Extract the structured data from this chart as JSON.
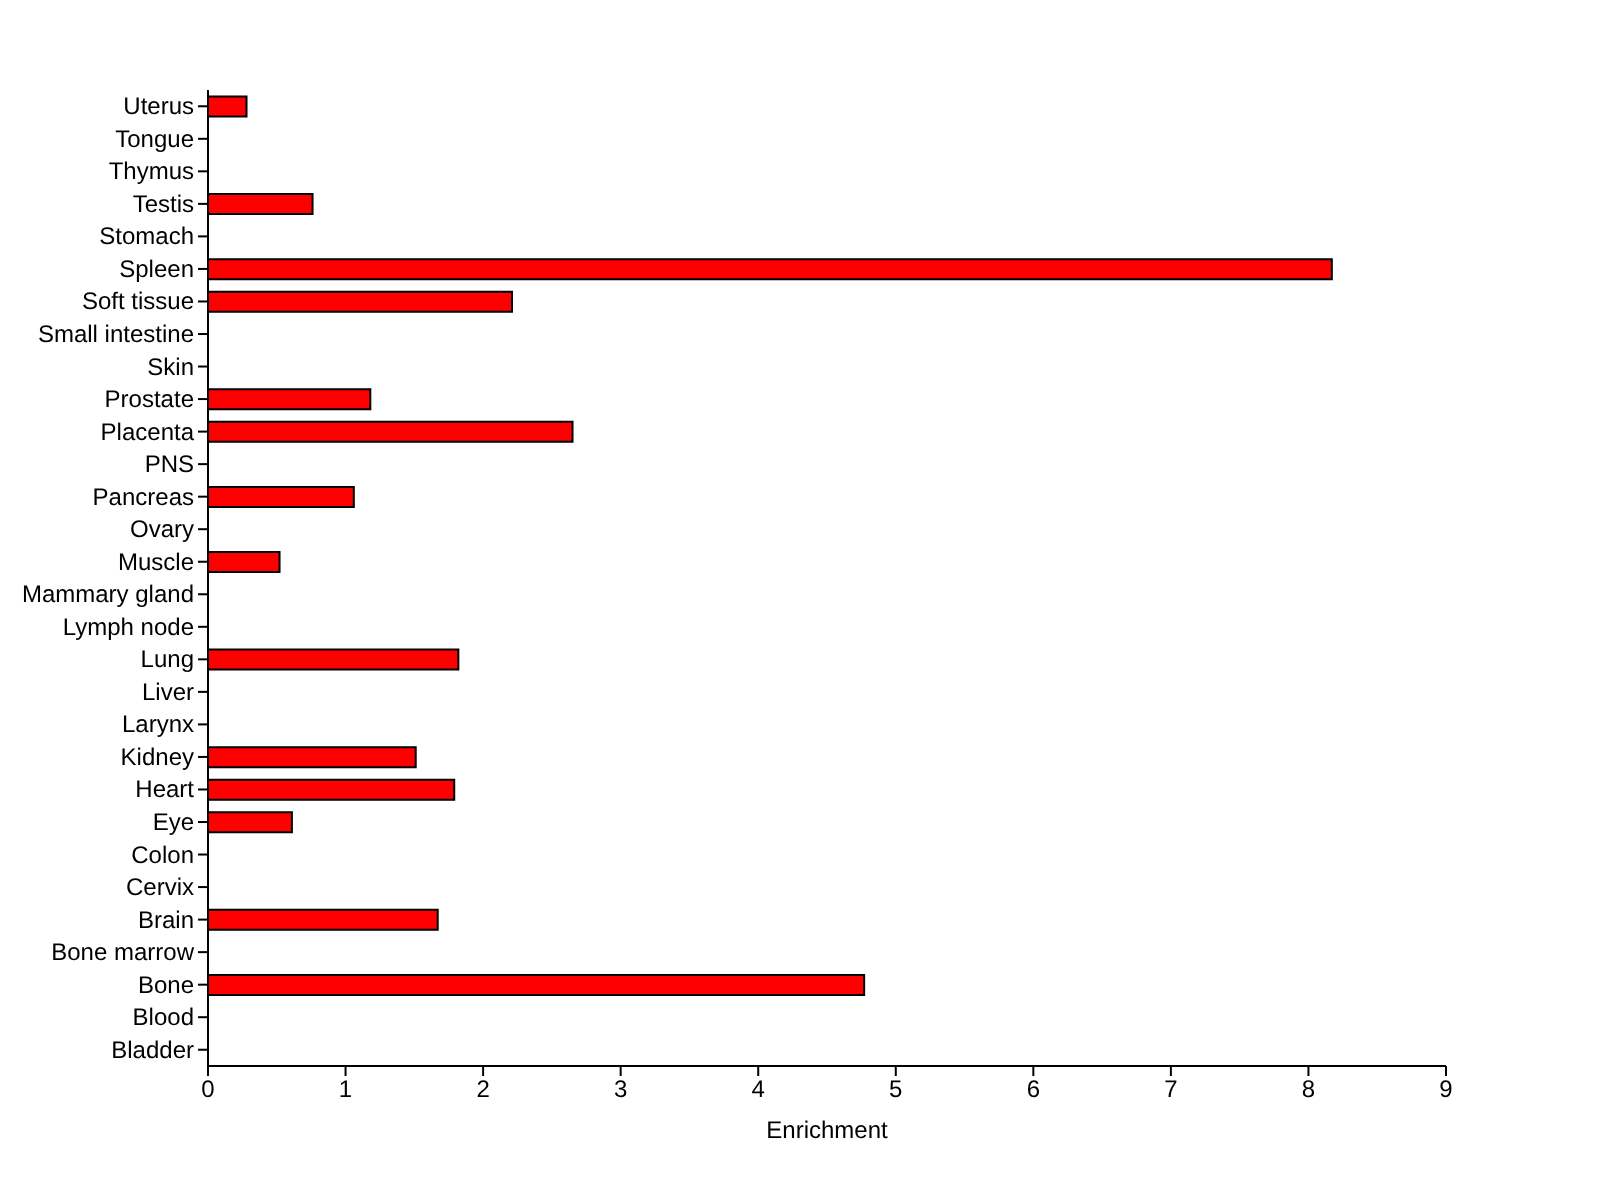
{
  "chart_data": {
    "type": "bar",
    "orientation": "horizontal",
    "xlabel": "Enrichment",
    "categories": [
      "Uterus",
      "Tongue",
      "Thymus",
      "Testis",
      "Stomach",
      "Spleen",
      "Soft tissue",
      "Small intestine",
      "Skin",
      "Prostate",
      "Placenta",
      "PNS",
      "Pancreas",
      "Ovary",
      "Muscle",
      "Mammary gland",
      "Lymph node",
      "Lung",
      "Liver",
      "Larynx",
      "Kidney",
      "Heart",
      "Eye",
      "Colon",
      "Cervix",
      "Brain",
      "Bone marrow",
      "Bone",
      "Blood",
      "Bladder"
    ],
    "values": [
      0.28,
      0,
      0,
      0.76,
      0,
      8.17,
      2.21,
      0,
      0,
      1.18,
      2.65,
      0,
      1.06,
      0,
      0.52,
      0,
      0,
      1.82,
      0,
      0,
      1.51,
      1.79,
      0.61,
      0,
      0,
      1.67,
      0,
      4.77,
      0,
      0
    ],
    "color": "#ff0000",
    "xlim": [
      0,
      9
    ],
    "xticks": [
      0,
      1,
      2,
      3,
      4,
      5,
      6,
      7,
      8,
      9
    ],
    "grid": false,
    "legend": false
  }
}
